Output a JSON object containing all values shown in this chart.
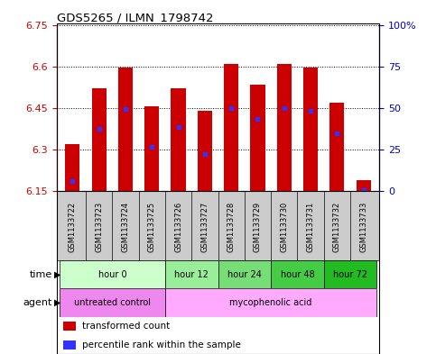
{
  "title": "GDS5265 / ILMN_1798742",
  "samples": [
    "GSM1133722",
    "GSM1133723",
    "GSM1133724",
    "GSM1133725",
    "GSM1133726",
    "GSM1133727",
    "GSM1133728",
    "GSM1133729",
    "GSM1133730",
    "GSM1133731",
    "GSM1133732",
    "GSM1133733"
  ],
  "bar_bottom": 6.15,
  "bar_tops": [
    6.32,
    6.52,
    6.595,
    6.455,
    6.52,
    6.44,
    6.61,
    6.535,
    6.61,
    6.595,
    6.47,
    6.19
  ],
  "blue_values": [
    6.185,
    6.375,
    6.445,
    6.31,
    6.38,
    6.285,
    6.45,
    6.41,
    6.45,
    6.44,
    6.36,
    6.155
  ],
  "ylim": [
    6.15,
    6.75
  ],
  "yticks_left": [
    6.15,
    6.3,
    6.45,
    6.6,
    6.75
  ],
  "yticks_right_vals": [
    0,
    25,
    50,
    75,
    100
  ],
  "bar_color": "#cc0000",
  "blue_color": "#3333ff",
  "left_axis_color": "#cc0000",
  "right_axis_color": "#0000cc",
  "time_group_spans": [
    [
      0,
      3,
      "hour 0",
      "#ccffcc"
    ],
    [
      4,
      5,
      "hour 12",
      "#99ee99"
    ],
    [
      6,
      7,
      "hour 24",
      "#77dd77"
    ],
    [
      8,
      9,
      "hour 48",
      "#44cc44"
    ],
    [
      10,
      11,
      "hour 72",
      "#22bb22"
    ]
  ],
  "agent_group_spans": [
    [
      0,
      3,
      "untreated control",
      "#ee88ee"
    ],
    [
      4,
      11,
      "mycophenolic acid",
      "#ffaaff"
    ]
  ],
  "legend_red_label": "transformed count",
  "legend_blue_label": "percentile rank within the sample"
}
